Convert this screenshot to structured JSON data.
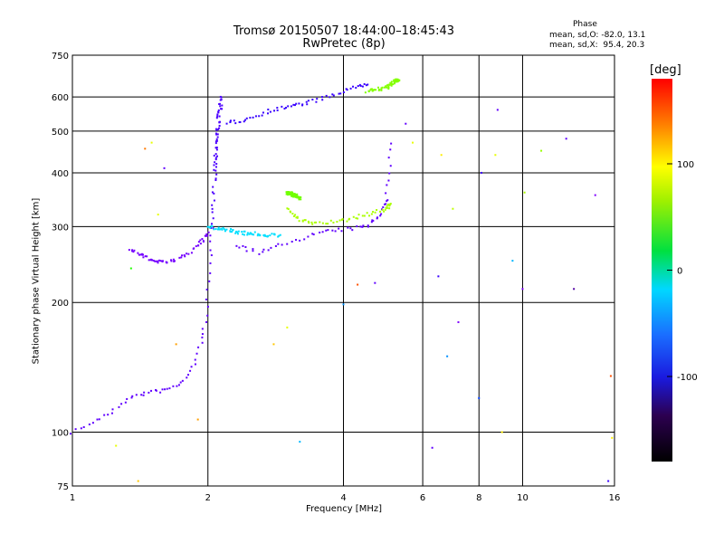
{
  "header": {
    "title": "Tromsø 20150507 18:44:00–18:45:43",
    "subtitle": "RwPretec (8p)",
    "phase_heading": "Phase",
    "phase_stats_o": "mean, sd,O: -82.0, 13.1",
    "phase_stats_x": "mean, sd,X:  95.4, 20.3"
  },
  "colorbar": {
    "label": "[deg]",
    "ticks": [
      "100",
      "0",
      "-100"
    ],
    "tick_values": [
      100,
      0,
      -100
    ],
    "range": [
      -180,
      180
    ]
  },
  "chart_data": {
    "type": "scatter",
    "xlabel": "Frequency [MHz]",
    "ylabel": "Stationary phase Virtual Height [km]",
    "xscale": "log",
    "yscale": "log",
    "xlim": [
      1,
      16
    ],
    "ylim": [
      75,
      750
    ],
    "xticks": [
      "1",
      "2",
      "4",
      "6",
      "8",
      "10",
      "16"
    ],
    "xtick_values": [
      1,
      2,
      4,
      6,
      8,
      10,
      16
    ],
    "yticks": [
      "75",
      "100",
      "200",
      "300",
      "400",
      "500",
      "600",
      "750"
    ],
    "ytick_values": [
      75,
      100,
      200,
      300,
      400,
      500,
      600,
      750
    ],
    "grid": true,
    "color_encoding": "phase [deg]",
    "traces": [
      {
        "x": [
          1.0,
          1.1,
          1.2,
          1.3,
          1.4,
          1.5,
          1.6,
          1.7,
          1.8,
          1.9,
          1.95,
          2.0,
          2.02,
          2.05
        ],
        "y": [
          100,
          105,
          110,
          118,
          122,
          124,
          125,
          128,
          135,
          150,
          170,
          200,
          250,
          300
        ],
        "phase": -100
      },
      {
        "x": [
          2.05,
          2.07,
          2.08,
          2.1,
          2.12,
          2.15
        ],
        "y": [
          300,
          400,
          450,
          500,
          550,
          600
        ],
        "phase": -95
      },
      {
        "x": [
          2.2,
          2.4,
          2.7,
          3.0,
          3.3,
          3.7,
          4.2,
          4.5
        ],
        "y": [
          520,
          530,
          555,
          570,
          580,
          600,
          630,
          640
        ],
        "phase": -90
      },
      {
        "x": [
          2.3,
          2.6,
          3.0,
          3.5,
          4.0,
          4.5,
          4.8,
          5.0,
          5.1
        ],
        "y": [
          272,
          260,
          275,
          290,
          295,
          300,
          320,
          350,
          470
        ],
        "phase": -100
      },
      {
        "x": [
          3.0,
          3.2,
          3.5,
          4.0,
          4.5,
          5.0,
          5.1
        ],
        "y": [
          330,
          310,
          305,
          310,
          320,
          330,
          340
        ],
        "phase": 95
      },
      {
        "x": [
          3.0,
          3.1,
          3.2
        ],
        "y": [
          360,
          355,
          350
        ],
        "phase": 80
      },
      {
        "x": [
          4.5,
          5.0,
          5.2,
          5.3
        ],
        "y": [
          620,
          630,
          650,
          660
        ],
        "phase": 85
      },
      {
        "x": [
          1.35,
          1.45,
          1.55,
          1.7,
          1.9,
          2.0
        ],
        "y": [
          265,
          255,
          248,
          250,
          270,
          290
        ],
        "phase": -105
      },
      {
        "x": [
          2.0,
          2.2,
          2.4,
          2.6,
          2.9
        ],
        "y": [
          300,
          295,
          290,
          288,
          285
        ],
        "phase": -20
      }
    ],
    "scatter": [
      {
        "x": 6.3,
        "y": 92,
        "phase": -100
      },
      {
        "x": 6.5,
        "y": 230,
        "phase": -90
      },
      {
        "x": 6.6,
        "y": 440,
        "phase": 120
      },
      {
        "x": 6.8,
        "y": 150,
        "phase": -40
      },
      {
        "x": 7.0,
        "y": 330,
        "phase": 100
      },
      {
        "x": 7.2,
        "y": 180,
        "phase": -120
      },
      {
        "x": 8.0,
        "y": 120,
        "phase": -60
      },
      {
        "x": 8.1,
        "y": 400,
        "phase": -90
      },
      {
        "x": 8.7,
        "y": 440,
        "phase": 110
      },
      {
        "x": 8.8,
        "y": 560,
        "phase": -100
      },
      {
        "x": 9.0,
        "y": 100,
        "phase": 120
      },
      {
        "x": 9.5,
        "y": 250,
        "phase": -30
      },
      {
        "x": 10.0,
        "y": 215,
        "phase": -110
      },
      {
        "x": 10.1,
        "y": 360,
        "phase": 95
      },
      {
        "x": 11.0,
        "y": 450,
        "phase": 90
      },
      {
        "x": 12.5,
        "y": 480,
        "phase": -100
      },
      {
        "x": 13.0,
        "y": 215,
        "phase": -150
      },
      {
        "x": 14.5,
        "y": 355,
        "phase": -110
      },
      {
        "x": 15.7,
        "y": 135,
        "phase": 160
      },
      {
        "x": 15.8,
        "y": 97,
        "phase": 120
      },
      {
        "x": 15.5,
        "y": 77,
        "phase": -90
      },
      {
        "x": 1.5,
        "y": 470,
        "phase": 110
      },
      {
        "x": 1.45,
        "y": 455,
        "phase": 150
      },
      {
        "x": 1.6,
        "y": 410,
        "phase": -100
      },
      {
        "x": 1.35,
        "y": 240,
        "phase": 60
      },
      {
        "x": 1.55,
        "y": 320,
        "phase": 110
      },
      {
        "x": 1.7,
        "y": 160,
        "phase": 140
      },
      {
        "x": 1.25,
        "y": 93,
        "phase": 110
      },
      {
        "x": 1.4,
        "y": 77,
        "phase": 130
      },
      {
        "x": 1.9,
        "y": 107,
        "phase": 140
      },
      {
        "x": 2.8,
        "y": 160,
        "phase": 130
      },
      {
        "x": 3.0,
        "y": 175,
        "phase": 110
      },
      {
        "x": 3.2,
        "y": 95,
        "phase": -30
      },
      {
        "x": 4.0,
        "y": 198,
        "phase": -40
      },
      {
        "x": 4.3,
        "y": 220,
        "phase": 160
      },
      {
        "x": 4.7,
        "y": 222,
        "phase": -100
      },
      {
        "x": 5.5,
        "y": 520,
        "phase": -100
      },
      {
        "x": 5.7,
        "y": 470,
        "phase": 110
      }
    ]
  }
}
